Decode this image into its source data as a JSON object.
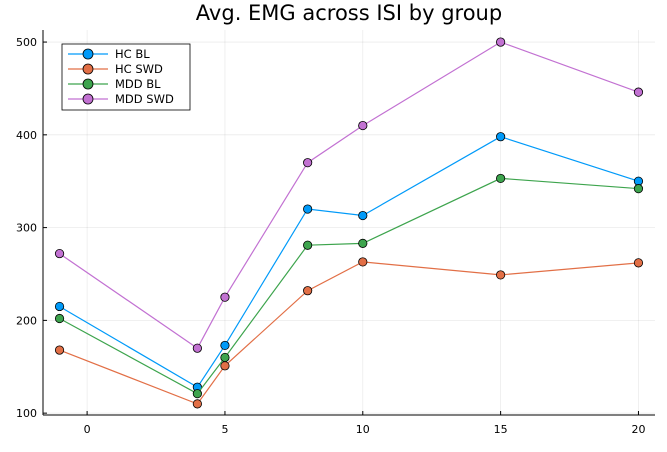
{
  "chart_data": {
    "type": "line",
    "title": "Avg. EMG across ISI by group",
    "xlabel": "",
    "ylabel": "",
    "x": [
      -1,
      4,
      5,
      8,
      10,
      15,
      20
    ],
    "xlim": [
      -1.6,
      20.6
    ],
    "ylim": [
      98,
      513
    ],
    "xticks": [
      0,
      5,
      10,
      15,
      20
    ],
    "yticks": [
      100,
      200,
      300,
      400,
      500
    ],
    "grid": true,
    "legend_position": "top-left",
    "markers": true,
    "series": [
      {
        "name": "HC BL",
        "color": "#009af9",
        "values": [
          215,
          128,
          173,
          320,
          313,
          398,
          350
        ]
      },
      {
        "name": "HC SWD",
        "color": "#e26f46",
        "values": [
          168,
          110,
          151,
          232,
          263,
          249,
          262
        ]
      },
      {
        "name": "MDD BL",
        "color": "#3da44d",
        "values": [
          202,
          121,
          160,
          281,
          283,
          353,
          342
        ]
      },
      {
        "name": "MDD SWD",
        "color": "#c271d2",
        "values": [
          272,
          170,
          225,
          370,
          410,
          500,
          446
        ]
      }
    ]
  }
}
